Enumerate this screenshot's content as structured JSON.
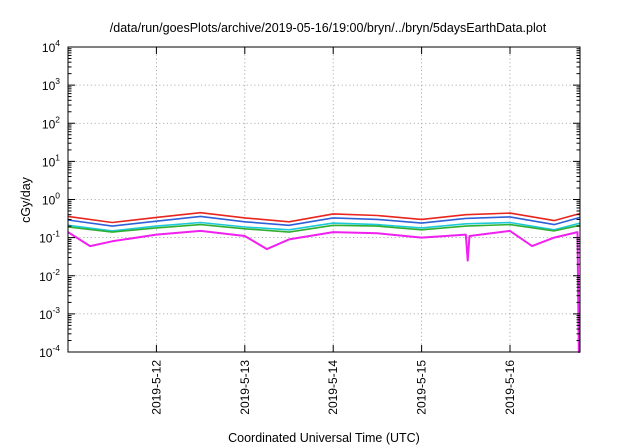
{
  "chart_data": {
    "type": "line",
    "title": "/data/run/goesPlots/archive/2019-05-16/19:00/bryn/../bryn/5daysEarthData.plot",
    "xlabel": "Coordinated Universal Time (UTC)",
    "ylabel": "cGy/day",
    "y_scale": "log",
    "ylim": [
      0.0001,
      10000
    ],
    "y_ticks": [
      {
        "value": 0.0001,
        "base": "10",
        "exp": "-4"
      },
      {
        "value": 0.001,
        "base": "10",
        "exp": "-3"
      },
      {
        "value": 0.01,
        "base": "10",
        "exp": "-2"
      },
      {
        "value": 0.1,
        "base": "10",
        "exp": "-1"
      },
      {
        "value": 1,
        "base": "10",
        "exp": "0"
      },
      {
        "value": 10,
        "base": "10",
        "exp": "1"
      },
      {
        "value": 100,
        "base": "10",
        "exp": "2"
      },
      {
        "value": 1000,
        "base": "10",
        "exp": "3"
      },
      {
        "value": 10000,
        "base": "10",
        "exp": "4"
      }
    ],
    "xlim": [
      "2019-05-11 00:00",
      "2019-05-16 19:00"
    ],
    "x_ticks": [
      "2019-5-12",
      "2019-5-13",
      "2019-5-14",
      "2019-5-15",
      "2019-5-16"
    ],
    "grid": true,
    "legend": "none",
    "series": [
      {
        "color": "#e8251e",
        "x": [
          "2019-05-11 00:00",
          "2019-05-11 12:00",
          "2019-05-12 00:00",
          "2019-05-12 12:00",
          "2019-05-13 00:00",
          "2019-05-13 12:00",
          "2019-05-14 00:00",
          "2019-05-14 12:00",
          "2019-05-15 00:00",
          "2019-05-15 12:00",
          "2019-05-16 00:00",
          "2019-05-16 12:00",
          "2019-05-16 19:00"
        ],
        "values": [
          0.36,
          0.25,
          0.34,
          0.45,
          0.33,
          0.26,
          0.42,
          0.38,
          0.3,
          0.4,
          0.44,
          0.28,
          0.43
        ]
      },
      {
        "color": "#3060d8",
        "x": [
          "2019-05-11 00:00",
          "2019-05-11 12:00",
          "2019-05-12 00:00",
          "2019-05-12 12:00",
          "2019-05-13 00:00",
          "2019-05-13 12:00",
          "2019-05-14 00:00",
          "2019-05-14 12:00",
          "2019-05-15 00:00",
          "2019-05-15 12:00",
          "2019-05-16 00:00",
          "2019-05-16 12:00",
          "2019-05-16 19:00"
        ],
        "values": [
          0.29,
          0.2,
          0.27,
          0.36,
          0.26,
          0.21,
          0.33,
          0.3,
          0.24,
          0.32,
          0.35,
          0.22,
          0.34
        ]
      },
      {
        "color": "#1ec8d8",
        "x": [
          "2019-05-11 00:00",
          "2019-05-11 12:00",
          "2019-05-12 00:00",
          "2019-05-12 12:00",
          "2019-05-13 00:00",
          "2019-05-13 12:00",
          "2019-05-14 00:00",
          "2019-05-14 12:00",
          "2019-05-15 00:00",
          "2019-05-15 12:00",
          "2019-05-16 00:00",
          "2019-05-16 12:00",
          "2019-05-16 19:00"
        ],
        "values": [
          0.21,
          0.15,
          0.2,
          0.25,
          0.19,
          0.16,
          0.24,
          0.22,
          0.18,
          0.23,
          0.25,
          0.16,
          0.24
        ]
      },
      {
        "color": "#30b030",
        "x": [
          "2019-05-11 00:00",
          "2019-05-11 12:00",
          "2019-05-12 00:00",
          "2019-05-12 12:00",
          "2019-05-13 00:00",
          "2019-05-13 12:00",
          "2019-05-14 00:00",
          "2019-05-14 12:00",
          "2019-05-15 00:00",
          "2019-05-15 12:00",
          "2019-05-16 00:00",
          "2019-05-16 12:00",
          "2019-05-16 19:00"
        ],
        "values": [
          0.19,
          0.14,
          0.18,
          0.22,
          0.17,
          0.14,
          0.21,
          0.2,
          0.16,
          0.2,
          0.22,
          0.15,
          0.21
        ]
      },
      {
        "color": "#f020f0",
        "x": [
          "2019-05-11 00:00",
          "2019-05-11 06:00",
          "2019-05-11 12:00",
          "2019-05-12 00:00",
          "2019-05-12 12:00",
          "2019-05-13 00:00",
          "2019-05-13 06:00",
          "2019-05-13 12:00",
          "2019-05-14 00:00",
          "2019-05-14 12:00",
          "2019-05-15 00:00",
          "2019-05-15 12:00",
          "2019-05-15 12:30",
          "2019-05-15 13:00",
          "2019-05-16 00:00",
          "2019-05-16 06:00",
          "2019-05-16 12:00",
          "2019-05-16 18:20",
          "2019-05-16 18:40",
          "2019-05-16 19:00"
        ],
        "values": [
          0.14,
          0.06,
          0.08,
          0.12,
          0.15,
          0.11,
          0.05,
          0.09,
          0.14,
          0.13,
          0.1,
          0.12,
          0.025,
          0.11,
          0.15,
          0.06,
          0.1,
          0.14,
          0.0001,
          0.0001
        ]
      }
    ]
  }
}
